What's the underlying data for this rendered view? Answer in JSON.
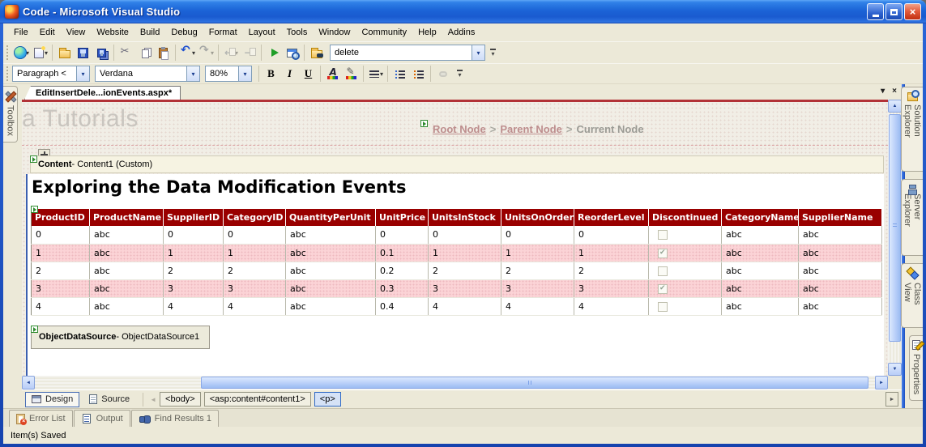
{
  "window": {
    "title": "Code - Microsoft Visual Studio"
  },
  "menu": {
    "items": [
      "File",
      "Edit",
      "View",
      "Website",
      "Build",
      "Debug",
      "Format",
      "Layout",
      "Tools",
      "Window",
      "Community",
      "Help",
      "Addins"
    ]
  },
  "toolbar_main": {
    "buttons": [
      {
        "name": "new-website",
        "dropdown": true
      },
      {
        "name": "add-new-item",
        "dropdown": true
      },
      {
        "sep": true
      },
      {
        "name": "open-file"
      },
      {
        "name": "save"
      },
      {
        "name": "save-all"
      },
      {
        "sep": true
      },
      {
        "name": "cut"
      },
      {
        "name": "copy"
      },
      {
        "name": "paste"
      },
      {
        "sep": true
      },
      {
        "name": "undo",
        "dropdown": true
      },
      {
        "name": "redo",
        "dropdown": true,
        "disabled": true
      },
      {
        "sep": true
      },
      {
        "name": "navigate-backward",
        "dropdown": true,
        "disabled": true
      },
      {
        "name": "navigate-forward",
        "disabled": true
      },
      {
        "sep": true
      },
      {
        "name": "start-debugging"
      },
      {
        "name": "view-in-browser"
      },
      {
        "sep": true
      },
      {
        "name": "find-in-files"
      }
    ],
    "combo_value": "delete"
  },
  "toolbar_format": {
    "style_value": "Paragraph <",
    "font_value": "Verdana",
    "size_value": "80%",
    "buttons": [
      {
        "name": "bold",
        "glyph": "B"
      },
      {
        "name": "italic",
        "glyph": "I"
      },
      {
        "name": "underline",
        "glyph": "U"
      },
      {
        "sep": true
      },
      {
        "name": "font-color"
      },
      {
        "name": "highlight"
      },
      {
        "sep": true
      },
      {
        "name": "alignment",
        "dropdown": true
      },
      {
        "sep": true
      },
      {
        "name": "bullet-list"
      },
      {
        "name": "numbered-list"
      },
      {
        "sep": true
      },
      {
        "name": "hyperlink",
        "disabled": true
      }
    ]
  },
  "document": {
    "tab_label": "EditInsertDele...ionEvents.aspx*",
    "toolbox_label": "Toolbox",
    "right_tabs": [
      {
        "label": "Solution Explorer",
        "icon": "solution-explorer"
      },
      {
        "label": "Server Explorer",
        "icon": "server-explorer"
      },
      {
        "label": "Class View",
        "icon": "class-view"
      },
      {
        "label": "Properties",
        "icon": "properties"
      }
    ]
  },
  "design": {
    "site_title": "a Tutorials",
    "breadcrumb": {
      "root": "Root Node",
      "parent": "Parent Node",
      "current": "Current Node",
      "separator": ">"
    },
    "content_label": {
      "bold": "Content",
      "rest": " - Content1 (Custom)"
    },
    "heading": "Exploring the Data Modification Events",
    "datasource_label": {
      "bold": "ObjectDataSource",
      "rest": " - ObjectDataSource1"
    }
  },
  "grid": {
    "columns": [
      "ProductID",
      "ProductName",
      "SupplierID",
      "CategoryID",
      "QuantityPerUnit",
      "UnitPrice",
      "UnitsInStock",
      "UnitsOnOrder",
      "ReorderLevel",
      "Discontinued",
      "CategoryName",
      "SupplierName"
    ],
    "rows": [
      {
        "cells": [
          "0",
          "abc",
          "0",
          "0",
          "abc",
          "0",
          "0",
          "0",
          "0",
          null,
          "abc",
          "abc"
        ],
        "checked": false
      },
      {
        "cells": [
          "1",
          "abc",
          "1",
          "1",
          "abc",
          "0.1",
          "1",
          "1",
          "1",
          null,
          "abc",
          "abc"
        ],
        "checked": true
      },
      {
        "cells": [
          "2",
          "abc",
          "2",
          "2",
          "abc",
          "0.2",
          "2",
          "2",
          "2",
          null,
          "abc",
          "abc"
        ],
        "checked": false
      },
      {
        "cells": [
          "3",
          "abc",
          "3",
          "3",
          "abc",
          "0.3",
          "3",
          "3",
          "3",
          null,
          "abc",
          "abc"
        ],
        "checked": true
      },
      {
        "cells": [
          "4",
          "abc",
          "4",
          "4",
          "abc",
          "0.4",
          "4",
          "4",
          "4",
          null,
          "abc",
          "abc"
        ],
        "checked": false
      }
    ],
    "colors": {
      "header_bg": "#990000",
      "header_fg": "#ffffff",
      "alt_row_bg": "#fbd3d6"
    }
  },
  "bottom_bar": {
    "design_label": "Design",
    "source_label": "Source",
    "tags": [
      {
        "label": "<body>"
      },
      {
        "label": "<asp:content#content1>"
      },
      {
        "label": "<p>",
        "active": true
      }
    ]
  },
  "panels": {
    "tabs": [
      {
        "label": "Error List",
        "icon": "error-list"
      },
      {
        "label": "Output",
        "icon": "output"
      },
      {
        "label": "Find Results 1",
        "icon": "find-results"
      }
    ]
  },
  "statusbar": {
    "text": "Item(s) Saved"
  },
  "icons": {
    "dropdown": "▾",
    "close": "×",
    "left": "◄",
    "right": "►",
    "up": "▲",
    "down": "▼"
  },
  "colors": {
    "chrome_bg": "#ece9d8",
    "title_blue": "#1b63d6",
    "design_red_line": "#b23237",
    "breadcrumb_link": "#bd8d8d",
    "breadcrumb_current": "#9b9b95",
    "smart_tag_green": "#2d8a2d"
  }
}
